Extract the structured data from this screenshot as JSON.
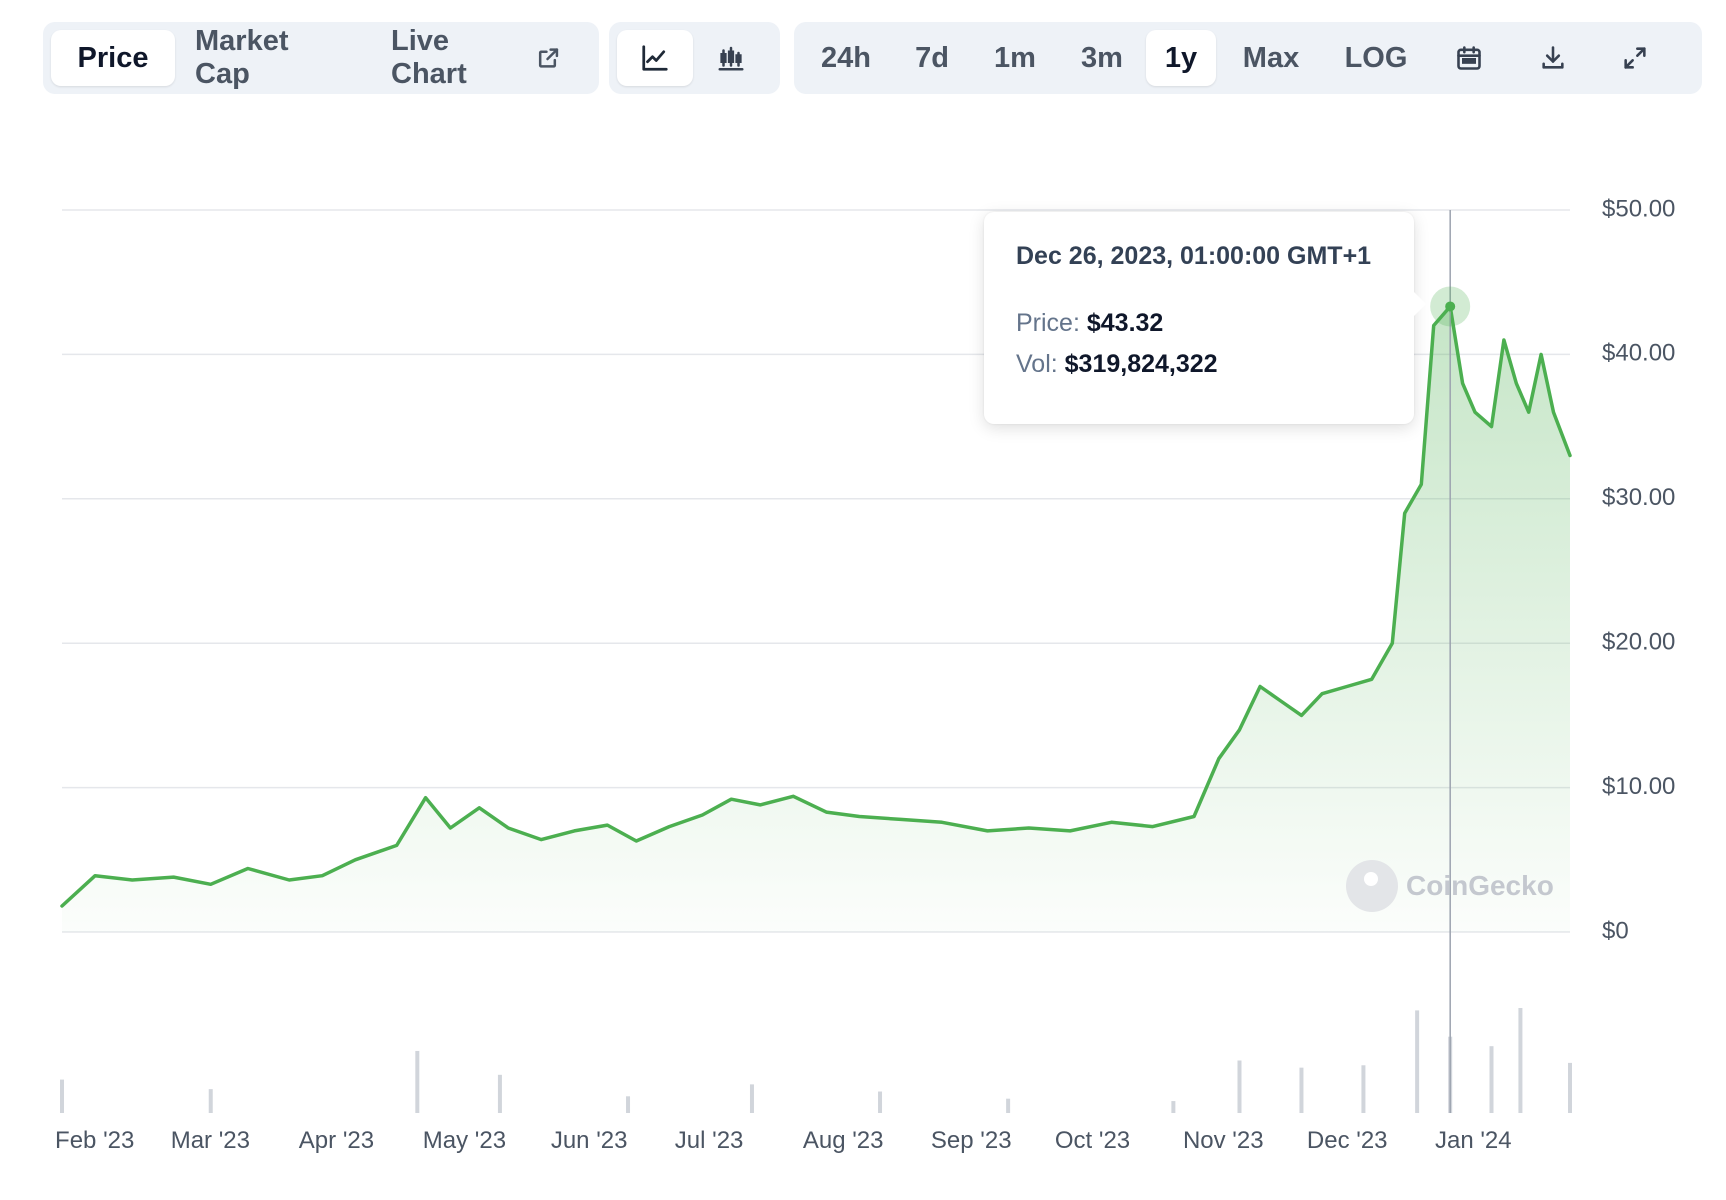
{
  "toolbar": {
    "type_tabs": [
      {
        "label": "Price",
        "active": true
      },
      {
        "label": "Market Cap",
        "active": false
      },
      {
        "label": "Live Chart",
        "active": false,
        "icon": "external-link-icon"
      }
    ],
    "view_buttons": [
      {
        "icon": "line-chart-icon",
        "active": true
      },
      {
        "icon": "candlestick-chart-icon",
        "active": false
      }
    ],
    "ranges": [
      {
        "label": "24h",
        "active": false
      },
      {
        "label": "7d",
        "active": false
      },
      {
        "label": "1m",
        "active": false
      },
      {
        "label": "3m",
        "active": false
      },
      {
        "label": "1y",
        "active": true
      },
      {
        "label": "Max",
        "active": false
      },
      {
        "label": "LOG",
        "active": false
      }
    ],
    "action_icons": [
      "calendar-icon",
      "download-icon",
      "fullscreen-icon"
    ]
  },
  "tooltip": {
    "date": "Dec 26, 2023, 01:00:00 GMT+1",
    "price_label": "Price:",
    "price_value": "$43.32",
    "vol_label": "Vol:",
    "vol_value": "$319,824,322"
  },
  "watermark": "CoinGecko",
  "colors": {
    "line": "#4caf50",
    "area": "#4caf50",
    "volume": "#d1d5db",
    "grid": "#e5e7eb"
  },
  "chart_data": {
    "type": "area",
    "x_tick_labels": [
      "Feb '23",
      "Mar '23",
      "Apr '23",
      "May '23",
      "Jun '23",
      "Jul '23",
      "Aug '23",
      "Sep '23",
      "Oct '23",
      "Nov '23",
      "Dec '23",
      "Jan '24"
    ],
    "y_tick_labels": [
      "$50.00",
      "$40.00",
      "$30.00",
      "$20.00",
      "$10.00",
      "$0"
    ],
    "ylim": [
      0,
      50
    ],
    "grid": true,
    "series": [
      {
        "x": [
          "2023-01-24",
          "2023-02-01",
          "2023-02-10",
          "2023-02-20",
          "2023-03-01",
          "2023-03-10",
          "2023-03-20",
          "2023-03-28",
          "2023-04-05",
          "2023-04-15",
          "2023-04-22",
          "2023-04-28",
          "2023-05-05",
          "2023-05-12",
          "2023-05-20",
          "2023-05-28",
          "2023-06-05",
          "2023-06-12",
          "2023-06-20",
          "2023-06-28",
          "2023-07-05",
          "2023-07-12",
          "2023-07-20",
          "2023-07-28",
          "2023-08-05",
          "2023-08-15",
          "2023-08-25",
          "2023-09-05",
          "2023-09-15",
          "2023-09-25",
          "2023-10-05",
          "2023-10-15",
          "2023-10-25",
          "2023-10-31",
          "2023-11-05",
          "2023-11-10",
          "2023-11-15",
          "2023-11-20",
          "2023-11-25",
          "2023-12-01",
          "2023-12-07",
          "2023-12-12",
          "2023-12-15",
          "2023-12-19",
          "2023-12-22",
          "2023-12-26",
          "2023-12-29",
          "2024-01-01",
          "2024-01-05",
          "2024-01-08",
          "2024-01-11",
          "2024-01-14",
          "2024-01-17",
          "2024-01-20",
          "2024-01-24"
        ],
        "values": [
          1.8,
          3.9,
          3.6,
          3.8,
          3.3,
          4.4,
          3.6,
          3.9,
          5.0,
          6.0,
          9.3,
          7.2,
          8.6,
          7.2,
          6.4,
          7.0,
          7.4,
          6.3,
          7.3,
          8.1,
          9.2,
          8.8,
          9.4,
          8.3,
          8.0,
          7.8,
          7.6,
          7.0,
          7.2,
          7.0,
          7.6,
          7.3,
          8.0,
          12.0,
          14.0,
          17.0,
          16.0,
          15.0,
          16.5,
          17.0,
          17.5,
          20.0,
          29.0,
          31.0,
          42.0,
          43.32,
          38.0,
          36.0,
          35.0,
          41.0,
          38.0,
          36.0,
          40.0,
          36.0,
          33.0
        ]
      }
    ],
    "volume": {
      "x": [
        "2023-01-24",
        "2023-03-01",
        "2023-04-20",
        "2023-05-10",
        "2023-06-10",
        "2023-07-10",
        "2023-08-10",
        "2023-09-10",
        "2023-10-20",
        "2023-11-05",
        "2023-11-20",
        "2023-12-05",
        "2023-12-18",
        "2023-12-26",
        "2024-01-05",
        "2024-01-12",
        "2024-01-24"
      ],
      "values": [
        140000000,
        100000000,
        260000000,
        160000000,
        70000000,
        120000000,
        90000000,
        60000000,
        50000000,
        220000000,
        190000000,
        200000000,
        430000000,
        319824322,
        280000000,
        440000000,
        210000000
      ]
    },
    "highlight": {
      "x": "2023-12-26",
      "price": 43.32,
      "volume": 319824322
    }
  }
}
